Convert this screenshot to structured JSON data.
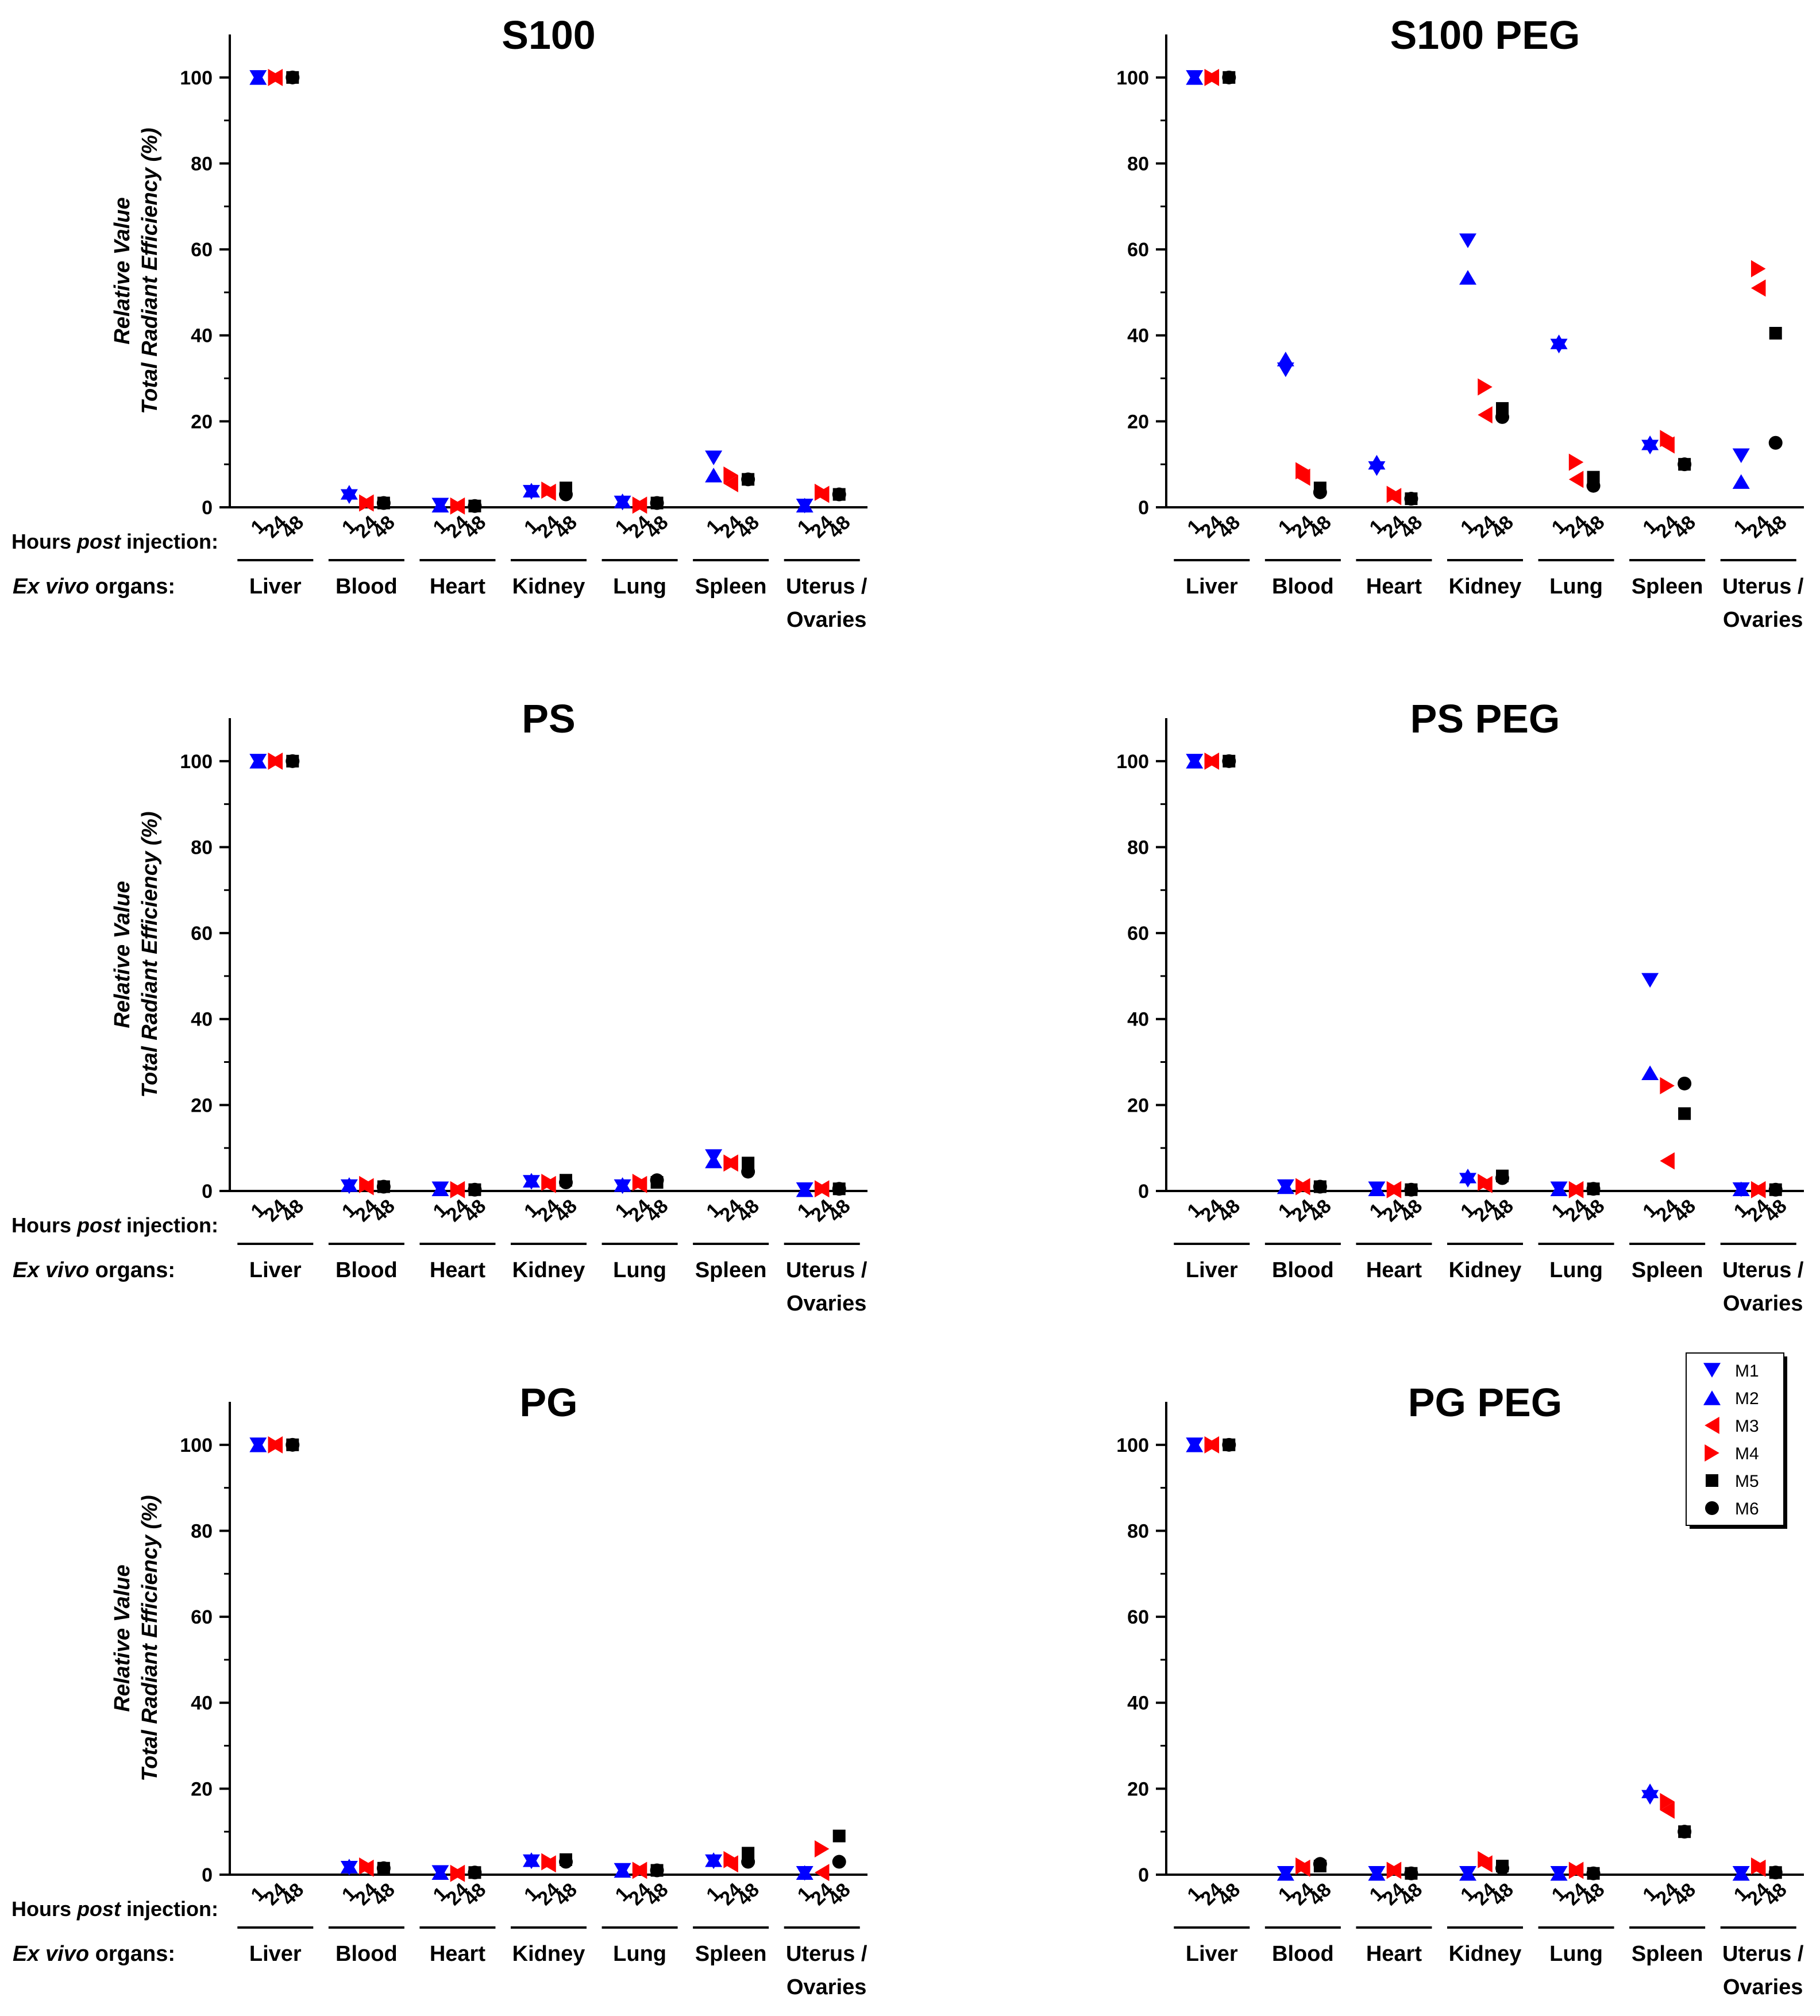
{
  "colors": {
    "M1": "#0000ff",
    "M2": "#0000ff",
    "M3": "#ff0000",
    "M4": "#ff0000",
    "M5": "#000000",
    "M6": "#000000"
  },
  "markers": {
    "M1": "triangle-down",
    "M2": "triangle-up",
    "M3": "triangle-left",
    "M4": "triangle-right",
    "M5": "square",
    "M6": "circle"
  },
  "labels": {
    "y_line1": "Relative Value",
    "y_line2": "Total Radiant Efficiency (%)",
    "hours_prefix": "Hours ",
    "hours_italic": "post",
    "hours_suffix": " injection:",
    "organs_italic": "Ex vivo",
    "organs_suffix": " organs:"
  },
  "legend": [
    "M1",
    "M2",
    "M3",
    "M4",
    "M5",
    "M6"
  ],
  "chart_data": [
    {
      "type": "scatter",
      "title": "S100",
      "ylim": [
        0,
        110
      ],
      "yticks": [
        0,
        20,
        40,
        60,
        80,
        100
      ],
      "organs": [
        "Liver",
        "Blood",
        "Heart",
        "Kidney",
        "Lung",
        "Spleen",
        "Uterus / Ovaries"
      ],
      "timepoints": [
        "1",
        "24",
        "48"
      ],
      "series": [
        {
          "name": "M1",
          "time": "1",
          "values": [
            100,
            2.5,
            0.5,
            3.5,
            1.0,
            11.5,
            0.3
          ]
        },
        {
          "name": "M2",
          "time": "1",
          "values": [
            100,
            3.5,
            0.5,
            4.0,
            1.5,
            7.5,
            0.5
          ]
        },
        {
          "name": "M3",
          "time": "24",
          "values": [
            100,
            1.0,
            0.3,
            3.5,
            0.5,
            5.5,
            3.0
          ]
        },
        {
          "name": "M4",
          "time": "24",
          "values": [
            100,
            1.0,
            0.3,
            4.0,
            0.5,
            7.5,
            3.5
          ]
        },
        {
          "name": "M5",
          "time": "48",
          "values": [
            100,
            1.0,
            0.3,
            4.5,
            1.0,
            6.5,
            3.0
          ]
        },
        {
          "name": "M6",
          "time": "48",
          "values": [
            100,
            1.0,
            0.3,
            3.0,
            1.0,
            6.5,
            3.0
          ]
        }
      ]
    },
    {
      "type": "scatter",
      "title": "S100 PEG",
      "ylim": [
        0,
        110
      ],
      "yticks": [
        0,
        20,
        40,
        60,
        80,
        100
      ],
      "organs": [
        "Liver",
        "Blood",
        "Heart",
        "Kidney",
        "Lung",
        "Spleen",
        "Uterus / Ovaries"
      ],
      "timepoints": [
        "1",
        "24",
        "48"
      ],
      "series": [
        {
          "name": "M1",
          "time": "1",
          "values": [
            100,
            32.0,
            9.0,
            62.0,
            37.5,
            14.0,
            12.0
          ]
        },
        {
          "name": "M2",
          "time": "1",
          "values": [
            100,
            34.5,
            10.5,
            53.5,
            38.5,
            15.0,
            6.0
          ]
        },
        {
          "name": "M3",
          "time": "24",
          "values": [
            100,
            7.0,
            2.5,
            21.5,
            6.5,
            14.5,
            51.0
          ]
        },
        {
          "name": "M4",
          "time": "24",
          "values": [
            100,
            8.5,
            3.0,
            28.0,
            10.5,
            16.0,
            55.5
          ]
        },
        {
          "name": "M5",
          "time": "48",
          "values": [
            100,
            4.5,
            2.0,
            23.0,
            7.0,
            10.0,
            40.5
          ]
        },
        {
          "name": "M6",
          "time": "48",
          "values": [
            100,
            3.5,
            2.0,
            21.0,
            5.0,
            10.0,
            15.0
          ]
        }
      ]
    },
    {
      "type": "scatter",
      "title": "PS",
      "ylim": [
        0,
        110
      ],
      "yticks": [
        0,
        20,
        40,
        60,
        80,
        100
      ],
      "organs": [
        "Liver",
        "Blood",
        "Heart",
        "Kidney",
        "Lung",
        "Spleen",
        "Uterus / Ovaries"
      ],
      "timepoints": [
        "1",
        "24",
        "48"
      ],
      "series": [
        {
          "name": "M1",
          "time": "1",
          "values": [
            100,
            1.0,
            0.5,
            2.0,
            1.0,
            8.0,
            0.3
          ]
        },
        {
          "name": "M2",
          "time": "1",
          "values": [
            100,
            1.5,
            0.5,
            2.5,
            1.5,
            7.0,
            0.3
          ]
        },
        {
          "name": "M3",
          "time": "24",
          "values": [
            100,
            1.0,
            0.3,
            1.5,
            1.5,
            6.5,
            0.5
          ]
        },
        {
          "name": "M4",
          "time": "24",
          "values": [
            100,
            1.5,
            0.3,
            2.0,
            2.0,
            6.5,
            0.5
          ]
        },
        {
          "name": "M5",
          "time": "48",
          "values": [
            100,
            1.0,
            0.3,
            2.5,
            2.0,
            6.5,
            0.5
          ]
        },
        {
          "name": "M6",
          "time": "48",
          "values": [
            100,
            1.0,
            0.3,
            2.0,
            2.5,
            4.5,
            0.5
          ]
        }
      ]
    },
    {
      "type": "scatter",
      "title": "PS PEG",
      "ylim": [
        0,
        110
      ],
      "yticks": [
        0,
        20,
        40,
        60,
        80,
        100
      ],
      "organs": [
        "Liver",
        "Blood",
        "Heart",
        "Kidney",
        "Lung",
        "Spleen",
        "Uterus / Ovaries"
      ],
      "timepoints": [
        "1",
        "24",
        "48"
      ],
      "series": [
        {
          "name": "M1",
          "time": "1",
          "values": [
            100,
            1.0,
            0.5,
            2.5,
            0.5,
            49.0,
            0.3
          ]
        },
        {
          "name": "M2",
          "time": "1",
          "values": [
            100,
            1.0,
            0.5,
            3.5,
            0.5,
            27.5,
            0.5
          ]
        },
        {
          "name": "M3",
          "time": "24",
          "values": [
            100,
            1.0,
            0.3,
            1.5,
            0.3,
            7.0,
            0.3
          ]
        },
        {
          "name": "M4",
          "time": "24",
          "values": [
            100,
            1.0,
            0.3,
            2.0,
            0.3,
            24.5,
            0.3
          ]
        },
        {
          "name": "M5",
          "time": "48",
          "values": [
            100,
            1.0,
            0.3,
            3.5,
            0.5,
            18.0,
            0.3
          ]
        },
        {
          "name": "M6",
          "time": "48",
          "values": [
            100,
            1.0,
            0.3,
            3.0,
            0.5,
            25.0,
            0.3
          ]
        }
      ]
    },
    {
      "type": "scatter",
      "title": "PG",
      "ylim": [
        0,
        110
      ],
      "yticks": [
        0,
        20,
        40,
        60,
        80,
        100
      ],
      "organs": [
        "Liver",
        "Blood",
        "Heart",
        "Kidney",
        "Lung",
        "Spleen",
        "Uterus / Ovaries"
      ],
      "timepoints": [
        "1",
        "24",
        "48"
      ],
      "series": [
        {
          "name": "M1",
          "time": "1",
          "values": [
            100,
            1.5,
            0.5,
            3.0,
            1.0,
            3.0,
            0.3
          ]
        },
        {
          "name": "M2",
          "time": "1",
          "values": [
            100,
            2.0,
            0.5,
            3.5,
            1.0,
            3.5,
            0.5
          ]
        },
        {
          "name": "M3",
          "time": "24",
          "values": [
            100,
            1.5,
            0.3,
            2.5,
            1.0,
            2.5,
            0.5
          ]
        },
        {
          "name": "M4",
          "time": "24",
          "values": [
            100,
            2.0,
            0.3,
            3.0,
            1.0,
            3.5,
            6.0
          ]
        },
        {
          "name": "M5",
          "time": "48",
          "values": [
            100,
            1.5,
            0.5,
            3.5,
            1.0,
            5.0,
            9.0
          ]
        },
        {
          "name": "M6",
          "time": "48",
          "values": [
            100,
            1.5,
            0.5,
            3.0,
            1.0,
            3.0,
            3.0
          ]
        }
      ]
    },
    {
      "type": "scatter",
      "title": "PG PEG",
      "ylim": [
        0,
        110
      ],
      "yticks": [
        0,
        20,
        40,
        60,
        80,
        100
      ],
      "organs": [
        "Liver",
        "Blood",
        "Heart",
        "Kidney",
        "Lung",
        "Spleen",
        "Uterus / Ovaries"
      ],
      "timepoints": [
        "1",
        "24",
        "48"
      ],
      "series": [
        {
          "name": "M1",
          "time": "1",
          "values": [
            100,
            0.3,
            0.3,
            0.3,
            0.3,
            18.0,
            0.3
          ]
        },
        {
          "name": "M2",
          "time": "1",
          "values": [
            100,
            0.3,
            0.3,
            0.3,
            0.3,
            19.5,
            0.3
          ]
        },
        {
          "name": "M3",
          "time": "24",
          "values": [
            100,
            1.5,
            1.0,
            2.5,
            1.0,
            15.0,
            1.5
          ]
        },
        {
          "name": "M4",
          "time": "24",
          "values": [
            100,
            2.0,
            1.0,
            3.5,
            1.0,
            17.0,
            2.0
          ]
        },
        {
          "name": "M5",
          "time": "48",
          "values": [
            100,
            2.0,
            0.3,
            2.0,
            0.3,
            10.0,
            0.5
          ]
        },
        {
          "name": "M6",
          "time": "48",
          "values": [
            100,
            2.5,
            0.3,
            1.5,
            0.3,
            10.0,
            0.5
          ]
        }
      ]
    }
  ]
}
